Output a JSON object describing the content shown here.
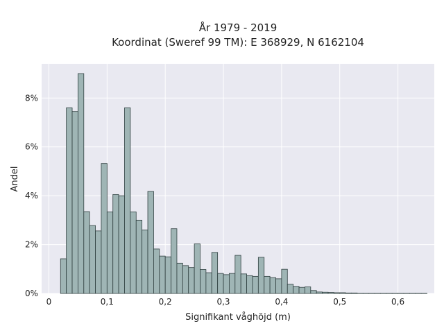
{
  "chart_data": {
    "type": "bar",
    "title_lines": [
      "År 1979 - 2019",
      "Koordinat (Sweref 99 TM): E 368929, N 6162104"
    ],
    "xlabel": "Signifikant våghöjd (m)",
    "ylabel": "Andel",
    "xlim": [
      -0.0125,
      0.6625
    ],
    "ylim": [
      0,
      9.4
    ],
    "x_ticks": [
      0,
      0.1,
      0.2,
      0.3,
      0.4,
      0.5,
      0.6
    ],
    "x_tick_labels": [
      "0",
      "0,1",
      "0,2",
      "0,3",
      "0,4",
      "0,5",
      "0,6"
    ],
    "y_ticks": [
      0,
      2,
      4,
      6,
      8
    ],
    "y_tick_labels": [
      "0%",
      "2%",
      "4%",
      "6%",
      "8%"
    ],
    "bin_width": 0.01,
    "bin_starts": [
      0.02,
      0.03,
      0.04,
      0.05,
      0.06,
      0.07,
      0.08,
      0.09,
      0.1,
      0.11,
      0.12,
      0.13,
      0.14,
      0.15,
      0.16,
      0.17,
      0.18,
      0.19,
      0.2,
      0.21,
      0.22,
      0.23,
      0.24,
      0.25,
      0.26,
      0.27,
      0.28,
      0.29,
      0.3,
      0.31,
      0.32,
      0.33,
      0.34,
      0.35,
      0.36,
      0.37,
      0.38,
      0.39,
      0.4,
      0.41,
      0.42,
      0.43,
      0.44,
      0.45,
      0.46,
      0.47,
      0.48,
      0.49,
      0.5,
      0.51,
      0.52,
      0.53,
      0.54,
      0.55,
      0.56,
      0.57,
      0.58,
      0.59,
      0.6,
      0.61,
      0.62,
      0.63,
      0.64
    ],
    "values": [
      1.42,
      7.6,
      7.45,
      9.0,
      3.35,
      2.78,
      2.56,
      5.32,
      3.34,
      4.05,
      4.0,
      7.6,
      3.34,
      3.0,
      2.6,
      4.18,
      1.82,
      1.53,
      1.5,
      2.65,
      1.24,
      1.14,
      1.06,
      2.03,
      0.98,
      0.85,
      1.68,
      0.82,
      0.77,
      0.82,
      1.56,
      0.8,
      0.73,
      0.7,
      1.48,
      0.7,
      0.65,
      0.6,
      0.99,
      0.38,
      0.29,
      0.25,
      0.27,
      0.12,
      0.06,
      0.05,
      0.04,
      0.03,
      0.03,
      0.02,
      0.02,
      0.01,
      0.01,
      0.01,
      0.01,
      0.01,
      0.01,
      0.01,
      0.01,
      0.01,
      0.01,
      0.01,
      0.01
    ],
    "grid": true,
    "colors": {
      "bar_fill": "#9fb5b5",
      "bar_edge": "#2f3f3f",
      "plot_background": "#e9e9f1",
      "grid": "#ffffff"
    }
  }
}
